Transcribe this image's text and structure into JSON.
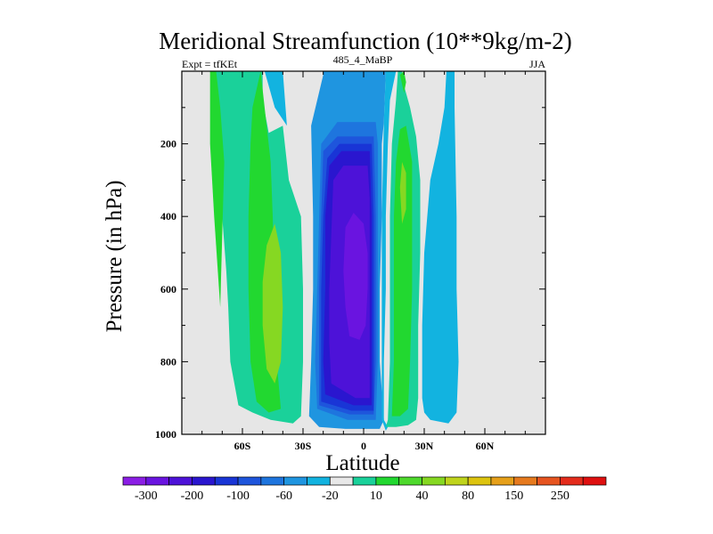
{
  "chart_data": {
    "type": "heatmap",
    "title": "Meridional Streamfunction (10**9kg/m-2)",
    "subtitle_left": "Expt = tfKEt",
    "subtitle_center": "485_4_MaBP",
    "subtitle_right": "JJA",
    "xlabel": "Latitude",
    "ylabel": "Pressure (in hPa)",
    "xlim": [
      -90,
      90
    ],
    "ylim": [
      1000,
      0
    ],
    "x_ticks": [
      -60,
      -30,
      0,
      30,
      60
    ],
    "x_tick_labels": [
      "60S",
      "30S",
      "0",
      "30N",
      "60N"
    ],
    "y_ticks": [
      200,
      400,
      600,
      800,
      1000
    ],
    "y_tick_labels": [
      "200",
      "400",
      "600",
      "800",
      "1000"
    ],
    "background_color": "#e6e6e6",
    "colorbar": {
      "colors": [
        "#8b1ee5",
        "#6a14e0",
        "#4d12d8",
        "#2a16cf",
        "#1935d6",
        "#1e55dc",
        "#1e75de",
        "#1f95e0",
        "#12b3e0",
        "#e8e8e8",
        "#1ad19a",
        "#22d830",
        "#4ed92c",
        "#86d822",
        "#bfd41c",
        "#ddc40f",
        "#e6a01a",
        "#e67a1e",
        "#e65420",
        "#e42c1c",
        "#df1010"
      ],
      "labels": [
        "-300",
        "-200",
        "-100",
        "-60",
        "-20",
        "10",
        "40",
        "80",
        "150",
        "250"
      ]
    },
    "contours": [
      {
        "level": -40,
        "points": [
          [
            -9,
            985
          ],
          [
            8,
            985
          ],
          [
            10,
            960
          ],
          [
            8,
            800
          ],
          [
            8,
            600
          ],
          [
            9,
            400
          ],
          [
            9,
            200
          ],
          [
            10,
            140
          ],
          [
            11,
            0
          ],
          [
            -20,
            0
          ],
          [
            -20,
            10
          ],
          [
            -26,
            150
          ],
          [
            -25,
            400
          ],
          [
            -25,
            600
          ],
          [
            -26,
            800
          ],
          [
            -27,
            950
          ],
          [
            -22,
            980
          ]
        ]
      },
      {
        "level": -60,
        "points": [
          [
            -8,
            960
          ],
          [
            6,
            960
          ],
          [
            7,
            800
          ],
          [
            7,
            600
          ],
          [
            7,
            400
          ],
          [
            7,
            200
          ],
          [
            6,
            140
          ],
          [
            -13,
            140
          ],
          [
            -21,
            200
          ],
          [
            -22,
            400
          ],
          [
            -23,
            600
          ],
          [
            -24,
            800
          ],
          [
            -23,
            930
          ]
        ]
      },
      {
        "level": -80,
        "points": [
          [
            -7,
            945
          ],
          [
            5,
            945
          ],
          [
            6,
            800
          ],
          [
            6,
            600
          ],
          [
            6,
            400
          ],
          [
            5,
            180
          ],
          [
            -13,
            180
          ],
          [
            -20,
            220
          ],
          [
            -21,
            400
          ],
          [
            -22,
            600
          ],
          [
            -22,
            800
          ],
          [
            -22,
            920
          ]
        ]
      },
      {
        "level": -100,
        "points": [
          [
            -6,
            935
          ],
          [
            5,
            935
          ],
          [
            5,
            800
          ],
          [
            5,
            600
          ],
          [
            5,
            400
          ],
          [
            4,
            200
          ],
          [
            -12,
            200
          ],
          [
            -18,
            240
          ],
          [
            -20,
            400
          ],
          [
            -21,
            600
          ],
          [
            -21,
            800
          ],
          [
            -21,
            910
          ]
        ]
      },
      {
        "level": -150,
        "points": [
          [
            -5,
            920
          ],
          [
            4,
            920
          ],
          [
            4,
            800
          ],
          [
            4,
            600
          ],
          [
            4,
            400
          ],
          [
            3,
            220
          ],
          [
            -11,
            220
          ],
          [
            -17,
            260
          ],
          [
            -19,
            400
          ],
          [
            -19,
            600
          ],
          [
            -20,
            800
          ],
          [
            -19,
            890
          ]
        ]
      },
      {
        "level": -200,
        "points": [
          [
            -4,
            900
          ],
          [
            3,
            900
          ],
          [
            3,
            700
          ],
          [
            3,
            500
          ],
          [
            3,
            350
          ],
          [
            2,
            260
          ],
          [
            -10,
            260
          ],
          [
            -15,
            300
          ],
          [
            -16,
            450
          ],
          [
            -17,
            600
          ],
          [
            -17,
            750
          ],
          [
            -16,
            860
          ]
        ]
      },
      {
        "level": -250,
        "points": [
          [
            -2,
            740
          ],
          [
            1,
            700
          ],
          [
            2,
            600
          ],
          [
            2,
            500
          ],
          [
            0,
            420
          ],
          [
            -5,
            390
          ],
          [
            -9,
            430
          ],
          [
            -10,
            550
          ],
          [
            -9,
            650
          ],
          [
            -7,
            730
          ]
        ]
      },
      {
        "level": -20,
        "points": [
          [
            -49,
            0
          ],
          [
            -40,
            0
          ],
          [
            -38,
            150
          ],
          [
            -44,
            100
          ]
        ]
      },
      {
        "level": -20,
        "points": [
          [
            11,
            0
          ],
          [
            16,
            0
          ],
          [
            13,
            80
          ],
          [
            12,
            200
          ],
          [
            11,
            400
          ],
          [
            11,
            600
          ],
          [
            10,
            800
          ],
          [
            10,
            960
          ],
          [
            12,
            980
          ],
          [
            11,
            990
          ],
          [
            9,
            960
          ],
          [
            9,
            400
          ],
          [
            10,
            140
          ]
        ]
      },
      {
        "level": -20,
        "points": [
          [
            29,
            900
          ],
          [
            29,
            700
          ],
          [
            30,
            500
          ],
          [
            33,
            300
          ],
          [
            37,
            200
          ],
          [
            40,
            100
          ],
          [
            41,
            0
          ],
          [
            45,
            0
          ],
          [
            45,
            100
          ],
          [
            46,
            400
          ],
          [
            46,
            600
          ],
          [
            47,
            800
          ],
          [
            46,
            940
          ],
          [
            42,
            970
          ],
          [
            33,
            960
          ],
          [
            30,
            940
          ]
        ]
      },
      {
        "level": 10,
        "points": [
          [
            -76,
            0
          ],
          [
            -50,
            0
          ],
          [
            -50,
            80
          ],
          [
            -47,
            170
          ],
          [
            -40,
            150
          ],
          [
            -37,
            300
          ],
          [
            -31,
            400
          ],
          [
            -30,
            600
          ],
          [
            -30,
            800
          ],
          [
            -31,
            950
          ],
          [
            -35,
            970
          ],
          [
            -46,
            960
          ],
          [
            -55,
            940
          ],
          [
            -62,
            920
          ],
          [
            -66,
            800
          ],
          [
            -67,
            650
          ],
          [
            -68,
            550
          ],
          [
            -70,
            400
          ],
          [
            -72,
            200
          ]
        ]
      },
      {
        "level": 10,
        "points": [
          [
            11,
            980
          ],
          [
            12,
            960
          ],
          [
            13,
            800
          ],
          [
            13,
            600
          ],
          [
            13,
            400
          ],
          [
            14,
            200
          ],
          [
            16,
            80
          ],
          [
            17,
            0
          ],
          [
            19,
            0
          ],
          [
            20,
            40
          ],
          [
            23,
            100
          ],
          [
            26,
            180
          ],
          [
            28,
            300
          ],
          [
            28,
            500
          ],
          [
            27,
            700
          ],
          [
            27,
            900
          ],
          [
            26,
            960
          ],
          [
            22,
            975
          ],
          [
            16,
            980
          ]
        ]
      },
      {
        "level": 40,
        "points": [
          [
            -55,
            100
          ],
          [
            -51,
            0
          ],
          [
            -49,
            100
          ],
          [
            -46,
            250
          ],
          [
            -45,
            400
          ],
          [
            -44,
            600
          ],
          [
            -43,
            800
          ],
          [
            -41,
            930
          ],
          [
            -47,
            940
          ],
          [
            -53,
            910
          ],
          [
            -56,
            800
          ],
          [
            -57,
            600
          ],
          [
            -57,
            400
          ],
          [
            -56,
            200
          ]
        ]
      },
      {
        "level": 40,
        "points": [
          [
            -76,
            0
          ],
          [
            -73,
            0
          ],
          [
            -71,
            100
          ],
          [
            -69,
            250
          ],
          [
            -71,
            650
          ],
          [
            -74,
            400
          ],
          [
            -76,
            200
          ]
        ]
      },
      {
        "level": 40,
        "points": [
          [
            14,
            950
          ],
          [
            15,
            800
          ],
          [
            15,
            600
          ],
          [
            15,
            400
          ],
          [
            16,
            250
          ],
          [
            18,
            160
          ],
          [
            21,
            150
          ],
          [
            24,
            250
          ],
          [
            24,
            400
          ],
          [
            24,
            600
          ],
          [
            23,
            800
          ],
          [
            22,
            930
          ],
          [
            18,
            950
          ]
        ]
      },
      {
        "level": 40,
        "points": [
          [
            18,
            10
          ],
          [
            20,
            0
          ],
          [
            21,
            30
          ],
          [
            20,
            60
          ]
        ]
      },
      {
        "level": 60,
        "points": [
          [
            -48,
            480
          ],
          [
            -44,
            420
          ],
          [
            -41,
            500
          ],
          [
            -40,
            650
          ],
          [
            -41,
            800
          ],
          [
            -44,
            860
          ],
          [
            -48,
            820
          ],
          [
            -50,
            700
          ],
          [
            -50,
            580
          ]
        ]
      },
      {
        "level": 60,
        "points": [
          [
            18,
            320
          ],
          [
            19,
            250
          ],
          [
            21,
            280
          ],
          [
            21,
            380
          ],
          [
            19,
            420
          ]
        ]
      },
      {
        "level": 40,
        "points": [
          [
            -80,
            0
          ],
          [
            -80,
            0
          ]
        ]
      }
    ]
  }
}
